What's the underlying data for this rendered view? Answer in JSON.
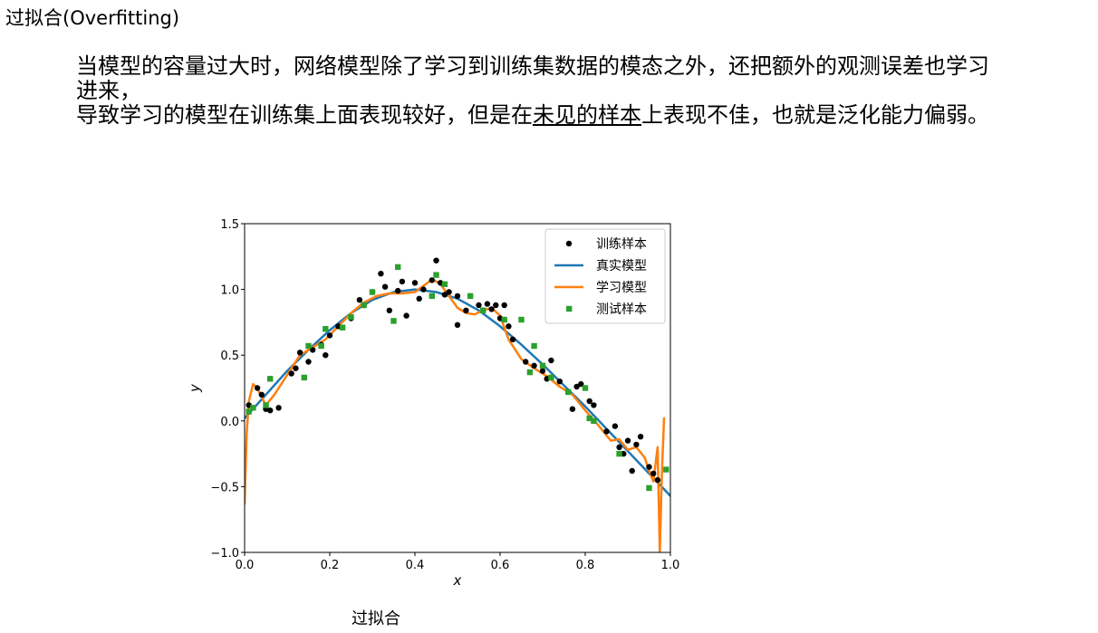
{
  "title": "过拟合(Overfitting)",
  "paragraph": {
    "line1": "当模型的容量过大时，网络模型除了学习到训练集数据的模态之外，还把额外的观测误差也学习",
    "line2": "进来，",
    "line3_a": "导致学习的模型在训练集上面表现较好，但是在",
    "line3_u": "未见的样本",
    "line3_b": "上表现不佳，也就是泛化能力偏弱。"
  },
  "caption": "过拟合",
  "colors": {
    "train": "#000000",
    "true_model": "#1f77b4",
    "learned_model": "#ff7f0e",
    "test": "#2ca02c"
  },
  "chart_data": {
    "type": "scatter",
    "xlabel": "x",
    "ylabel": "y",
    "xlim": [
      0.0,
      1.0
    ],
    "ylim": [
      -1.0,
      1.5
    ],
    "xticks": [
      "0.0",
      "0.2",
      "0.4",
      "0.6",
      "0.8",
      "1.0"
    ],
    "yticks": [
      "−1.0",
      "−0.5",
      "0.0",
      "0.5",
      "1.0",
      "1.5"
    ],
    "legend_position": "top-right",
    "legend": [
      "训练样本",
      "真实模型",
      "学习模型",
      "测试样本"
    ],
    "series": [
      {
        "name": "训练样本",
        "kind": "points",
        "marker": "circle",
        "x": [
          0.01,
          0.03,
          0.04,
          0.05,
          0.06,
          0.08,
          0.11,
          0.12,
          0.13,
          0.15,
          0.16,
          0.18,
          0.19,
          0.2,
          0.22,
          0.25,
          0.27,
          0.28,
          0.3,
          0.32,
          0.33,
          0.34,
          0.36,
          0.37,
          0.38,
          0.4,
          0.41,
          0.42,
          0.44,
          0.45,
          0.46,
          0.47,
          0.48,
          0.5,
          0.5,
          0.52,
          0.53,
          0.55,
          0.56,
          0.57,
          0.58,
          0.59,
          0.6,
          0.61,
          0.62,
          0.63,
          0.66,
          0.68,
          0.7,
          0.71,
          0.72,
          0.74,
          0.76,
          0.77,
          0.78,
          0.79,
          0.81,
          0.82,
          0.85,
          0.87,
          0.88,
          0.89,
          0.9,
          0.91,
          0.92,
          0.93,
          0.95,
          0.96,
          0.97
        ],
        "y": [
          0.12,
          0.25,
          0.2,
          0.09,
          0.08,
          0.1,
          0.36,
          0.4,
          0.52,
          0.45,
          0.54,
          0.58,
          0.5,
          0.65,
          0.72,
          0.78,
          0.92,
          0.88,
          0.98,
          1.12,
          1.02,
          0.84,
          0.99,
          1.06,
          0.8,
          1.05,
          0.93,
          1.0,
          1.07,
          1.22,
          1.05,
          0.96,
          0.98,
          0.95,
          0.73,
          0.84,
          0.95,
          0.88,
          0.84,
          0.89,
          0.85,
          0.88,
          0.78,
          0.88,
          0.72,
          0.62,
          0.45,
          0.42,
          0.38,
          0.32,
          0.46,
          0.3,
          0.22,
          0.09,
          0.26,
          0.28,
          0.15,
          0.12,
          -0.08,
          -0.04,
          -0.2,
          -0.25,
          -0.15,
          -0.38,
          -0.18,
          -0.12,
          -0.35,
          -0.4,
          -0.45
        ]
      },
      {
        "name": "真实模型",
        "kind": "line",
        "width": 2.5,
        "x": [
          0.0,
          0.05,
          0.1,
          0.15,
          0.2,
          0.25,
          0.3,
          0.35,
          0.4,
          0.45,
          0.5,
          0.55,
          0.6,
          0.65,
          0.7,
          0.75,
          0.8,
          0.85,
          0.9,
          0.95,
          1.0
        ],
        "y": [
          0.02,
          0.2,
          0.38,
          0.54,
          0.69,
          0.82,
          0.92,
          0.98,
          1.0,
          0.98,
          0.93,
          0.84,
          0.72,
          0.58,
          0.43,
          0.27,
          0.11,
          -0.06,
          -0.23,
          -0.4,
          -0.57
        ]
      },
      {
        "name": "学习模型",
        "kind": "line",
        "width": 2.5,
        "x": [
          0.0,
          0.005,
          0.01,
          0.02,
          0.03,
          0.04,
          0.05,
          0.07,
          0.1,
          0.13,
          0.16,
          0.19,
          0.22,
          0.25,
          0.28,
          0.31,
          0.34,
          0.37,
          0.4,
          0.43,
          0.44,
          0.46,
          0.48,
          0.5,
          0.52,
          0.54,
          0.56,
          0.58,
          0.6,
          0.62,
          0.65,
          0.68,
          0.71,
          0.74,
          0.77,
          0.8,
          0.83,
          0.86,
          0.88,
          0.9,
          0.92,
          0.94,
          0.95,
          0.96,
          0.97,
          0.975,
          0.98,
          0.985
        ],
        "y": [
          -0.63,
          -0.1,
          0.15,
          0.28,
          0.25,
          0.18,
          0.12,
          0.2,
          0.35,
          0.5,
          0.56,
          0.62,
          0.72,
          0.82,
          0.9,
          0.95,
          0.97,
          0.97,
          0.98,
          1.05,
          1.08,
          1.04,
          0.95,
          0.86,
          0.82,
          0.81,
          0.84,
          0.86,
          0.8,
          0.62,
          0.47,
          0.4,
          0.34,
          0.26,
          0.2,
          0.08,
          -0.03,
          -0.15,
          -0.14,
          -0.22,
          -0.2,
          -0.28,
          -0.38,
          -0.46,
          -0.2,
          -1.0,
          -0.4,
          0.02
        ]
      },
      {
        "name": "测试样本",
        "kind": "points",
        "marker": "square",
        "x": [
          0.01,
          0.02,
          0.05,
          0.06,
          0.14,
          0.15,
          0.18,
          0.19,
          0.23,
          0.25,
          0.28,
          0.3,
          0.35,
          0.36,
          0.44,
          0.45,
          0.47,
          0.53,
          0.56,
          0.61,
          0.65,
          0.67,
          0.68,
          0.7,
          0.72,
          0.76,
          0.8,
          0.81,
          0.82,
          0.88,
          0.95,
          0.99
        ],
        "y": [
          0.07,
          0.1,
          0.12,
          0.32,
          0.33,
          0.57,
          0.57,
          0.7,
          0.71,
          0.79,
          0.88,
          0.98,
          0.76,
          1.17,
          0.95,
          1.11,
          1.04,
          0.95,
          0.84,
          0.77,
          0.77,
          0.37,
          0.57,
          0.42,
          0.33,
          0.22,
          0.25,
          0.02,
          0.0,
          -0.25,
          -0.51,
          -0.37
        ]
      }
    ]
  }
}
